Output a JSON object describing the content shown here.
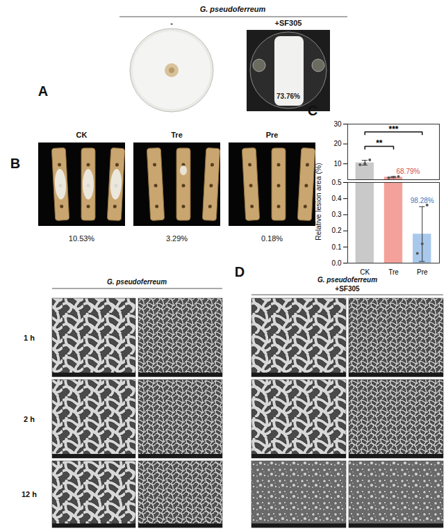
{
  "panels": {
    "A": {
      "label": "A",
      "title": "G. pseudoferreum",
      "columns": [
        "-",
        "+SF305"
      ],
      "inhibition": "73.76%"
    },
    "B": {
      "label": "B",
      "columns": [
        "CK",
        "Tre",
        "Pre"
      ],
      "lesion_area": [
        "10.53%",
        "3.29%",
        "0.18%"
      ]
    },
    "C": {
      "label": "C"
    },
    "D": {
      "label": "D",
      "groups": [
        [
          "G. pseudoferreum"
        ],
        [
          "G. pseudoferreum",
          "+SF305"
        ]
      ],
      "rows": [
        "1 h",
        "2 h",
        "12 h"
      ]
    }
  },
  "chart_data": {
    "type": "bar",
    "categories": [
      "CK",
      "Tre",
      "Pre"
    ],
    "values": [
      10.53,
      3.29,
      0.18
    ],
    "errors": [
      1.2,
      0.3,
      0.17
    ],
    "points": [
      [
        9.5,
        10.1,
        12.0
      ],
      [
        3.0,
        3.3,
        3.6
      ],
      [
        0.06,
        0.12,
        0.36
      ]
    ],
    "colors": [
      "#c9c9c9",
      "#f4a19b",
      "#a9c9ec"
    ],
    "y_label": "Relative lesion area (%)",
    "ylim_upper": [
      2,
      30
    ],
    "yticks_upper": [
      10,
      20,
      30
    ],
    "ylim_lower": [
      0,
      0.5
    ],
    "yticks_lower": [
      {
        "value": 0,
        "label": "0.0"
      },
      {
        "value": 0.1,
        "label": "0.1"
      },
      {
        "value": 0.2,
        "label": "0.2"
      },
      {
        "value": 0.3,
        "label": "0.3"
      },
      {
        "value": 0.4,
        "label": "0.4"
      },
      {
        "value": 0.5,
        "label": "0.5"
      }
    ],
    "annotations": [
      {
        "category": "Tre",
        "text": "68.79%"
      },
      {
        "category": "Pre",
        "text": "98.28%"
      }
    ],
    "significance": [
      {
        "from": "CK",
        "to": "Tre",
        "text": "**"
      },
      {
        "from": "CK",
        "to": "Pre",
        "text": "***"
      }
    ]
  }
}
